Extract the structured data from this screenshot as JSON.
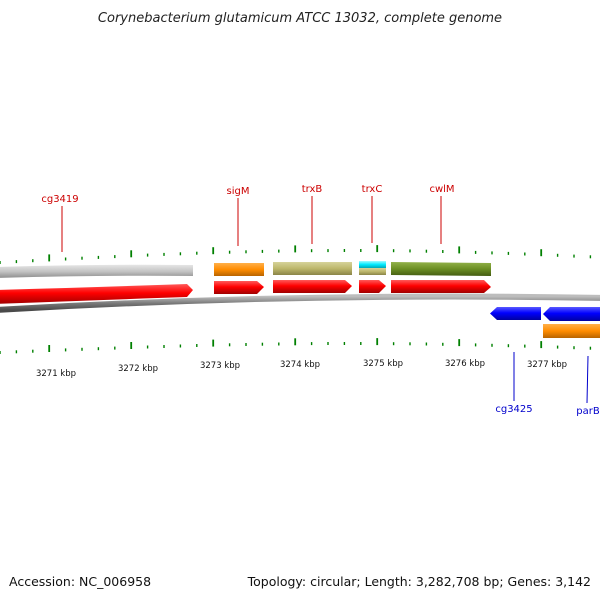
{
  "title": "Corynebacterium glutamicum ATCC 13032, complete genome",
  "footer": {
    "accession": "Accession: NC_006958",
    "topology": "Topology: circular; Length: 3,282,708 bp; Genes: 3,142"
  },
  "scale_labels": [
    {
      "kbp": 3271,
      "text": "3271 kbp"
    },
    {
      "kbp": 3272,
      "text": "3272 kbp"
    },
    {
      "kbp": 3273,
      "text": "3273 kbp"
    },
    {
      "kbp": 3274,
      "text": "3274 kbp"
    },
    {
      "kbp": 3275,
      "text": "3275 kbp"
    },
    {
      "kbp": 3276,
      "text": "3276 kbp"
    },
    {
      "kbp": 3277,
      "text": "3277 kbp"
    }
  ],
  "gene_labels": [
    {
      "id": "cg3419",
      "text": "cg3419",
      "strand": "forward"
    },
    {
      "id": "sigM",
      "text": "sigM",
      "strand": "forward"
    },
    {
      "id": "trxB",
      "text": "trxB",
      "strand": "forward"
    },
    {
      "id": "trxC",
      "text": "trxC",
      "strand": "forward"
    },
    {
      "id": "cwlM",
      "text": "cwlM",
      "strand": "forward"
    },
    {
      "id": "cg3425",
      "text": "cg3425",
      "strand": "reverse"
    },
    {
      "id": "parB",
      "text": "parB",
      "strand": "reverse"
    }
  ],
  "colors": {
    "forward_gene": "#ff0000",
    "reverse_gene": "#0000ff",
    "forward_label": "#cc0000",
    "reverse_label": "#0000cc",
    "tick": "#008000",
    "backbone": "#808080",
    "cog_gray": "#c0c0c0",
    "cog_orange": "#ff8c00",
    "cog_khaki": "#bdb76b",
    "cog_cyan": "#00ffff",
    "cog_olive": "#6b8e23"
  }
}
